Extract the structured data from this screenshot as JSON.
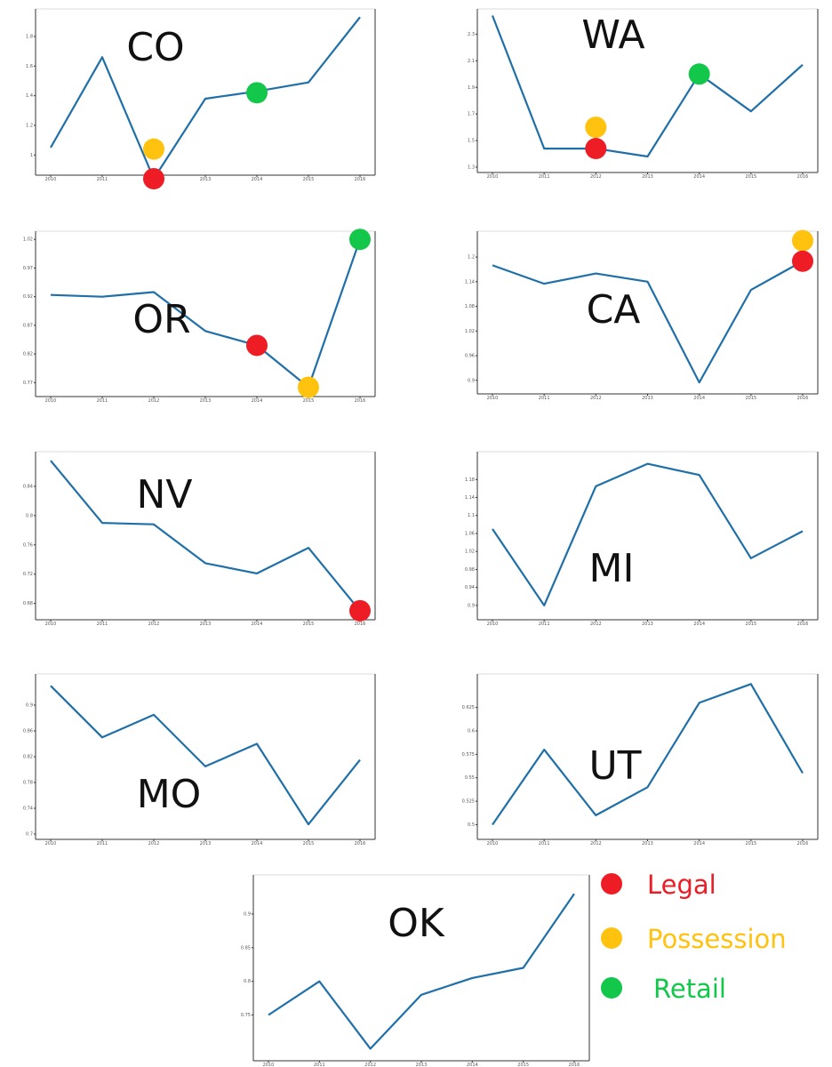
{
  "colors": {
    "line": "#1f6fa8",
    "legal": "#ee1c25",
    "possession": "#ffc20e",
    "retail": "#12c74a"
  },
  "legend": [
    {
      "key": "legal",
      "label": "Legal",
      "color": "#ee1c25"
    },
    {
      "key": "possession",
      "label": "Possession",
      "color": "#ffc20e"
    },
    {
      "key": "retail",
      "label": "Retail",
      "color": "#12c74a"
    }
  ],
  "chart_data": [
    {
      "type": "line",
      "title": "CO",
      "x": [
        2010,
        2011,
        2012,
        2013,
        2014,
        2015,
        2016
      ],
      "values": [
        1.05,
        1.66,
        0.84,
        1.38,
        1.43,
        1.49,
        1.93
      ],
      "ylim": [
        0.9,
        1.95
      ],
      "ytick_values": [
        1.0,
        1.2,
        1.4,
        1.6,
        1.8
      ],
      "markers": [
        {
          "key": "possession",
          "x": 2012,
          "y": 1.04
        },
        {
          "key": "legal",
          "x": 2012,
          "y": 0.84
        },
        {
          "key": "retail",
          "x": 2014,
          "y": 1.42
        }
      ]
    },
    {
      "type": "line",
      "title": "WA",
      "x": [
        2010,
        2011,
        2012,
        2013,
        2014,
        2015,
        2016
      ],
      "values": [
        2.44,
        1.44,
        1.44,
        1.38,
        2.0,
        1.72,
        2.07
      ],
      "ylim": [
        1.3,
        2.45
      ],
      "ytick_values": [
        1.3,
        1.5,
        1.7,
        1.9,
        2.1,
        2.3
      ],
      "markers": [
        {
          "key": "possession",
          "x": 2012,
          "y": 1.6
        },
        {
          "key": "legal",
          "x": 2012,
          "y": 1.44
        },
        {
          "key": "retail",
          "x": 2014,
          "y": 2.0
        }
      ]
    },
    {
      "type": "line",
      "title": "OR",
      "x": [
        2010,
        2011,
        2012,
        2013,
        2014,
        2015,
        2016
      ],
      "values": [
        0.923,
        0.92,
        0.928,
        0.86,
        0.835,
        0.762,
        1.02
      ],
      "ylim": [
        0.755,
        1.025
      ],
      "ytick_values": [
        0.77,
        0.82,
        0.87,
        0.92,
        0.97,
        1.02
      ],
      "markers": [
        {
          "key": "legal",
          "x": 2014,
          "y": 0.835
        },
        {
          "key": "possession",
          "x": 2015,
          "y": 0.762
        },
        {
          "key": "retail",
          "x": 2016,
          "y": 1.02
        }
      ]
    },
    {
      "type": "line",
      "title": "CA",
      "x": [
        2010,
        2011,
        2012,
        2013,
        2014,
        2015,
        2016
      ],
      "values": [
        1.18,
        1.135,
        1.16,
        1.14,
        0.895,
        1.12,
        1.19
      ],
      "ylim": [
        0.88,
        1.25
      ],
      "ytick_values": [
        0.9,
        0.96,
        1.02,
        1.08,
        1.14,
        1.2
      ],
      "markers": [
        {
          "key": "possession",
          "x": 2016,
          "y": 1.24
        },
        {
          "key": "legal",
          "x": 2016,
          "y": 1.19
        }
      ]
    },
    {
      "type": "line",
      "title": "NV",
      "x": [
        2010,
        2011,
        2012,
        2013,
        2014,
        2015,
        2016
      ],
      "values": [
        0.875,
        0.79,
        0.788,
        0.735,
        0.721,
        0.756,
        0.67
      ],
      "ylim": [
        0.665,
        0.88
      ],
      "ytick_values": [
        0.68,
        0.72,
        0.76,
        0.8,
        0.84
      ],
      "markers": [
        {
          "key": "legal",
          "x": 2016,
          "y": 0.67
        }
      ]
    },
    {
      "type": "line",
      "title": "MI",
      "x": [
        2010,
        2011,
        2012,
        2013,
        2014,
        2015,
        2016
      ],
      "values": [
        1.07,
        0.9,
        1.165,
        1.215,
        1.19,
        1.005,
        1.065
      ],
      "ylim": [
        0.88,
        1.23
      ],
      "ytick_values": [
        0.9,
        0.94,
        0.98,
        1.02,
        1.06,
        1.1,
        1.14,
        1.18
      ],
      "markers": []
    },
    {
      "type": "line",
      "title": "MO",
      "x": [
        2010,
        2011,
        2012,
        2013,
        2014,
        2015,
        2016
      ],
      "values": [
        0.93,
        0.85,
        0.885,
        0.805,
        0.84,
        0.715,
        0.815
      ],
      "ylim": [
        0.7,
        0.94
      ],
      "ytick_values": [
        0.7,
        0.74,
        0.78,
        0.82,
        0.86,
        0.9
      ],
      "markers": []
    },
    {
      "type": "line",
      "title": "UT",
      "x": [
        2010,
        2011,
        2012,
        2013,
        2014,
        2015,
        2016
      ],
      "values": [
        0.5,
        0.58,
        0.51,
        0.54,
        0.63,
        0.65,
        0.555
      ],
      "ylim": [
        0.49,
        0.655
      ],
      "ytick_values": [
        0.5,
        0.525,
        0.55,
        0.575,
        0.6,
        0.625
      ],
      "markers": []
    },
    {
      "type": "line",
      "title": "OK",
      "x": [
        2010,
        2011,
        2012,
        2013,
        2014,
        2015,
        2016
      ],
      "values": [
        0.75,
        0.8,
        0.7,
        0.78,
        0.805,
        0.82,
        0.93
      ],
      "ylim": [
        0.69,
        0.95
      ],
      "ytick_values": [
        0.75,
        0.8,
        0.85,
        0.9
      ],
      "markers": []
    }
  ]
}
